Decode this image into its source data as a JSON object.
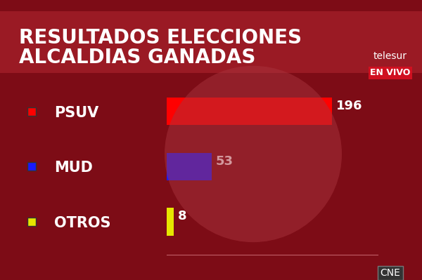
{
  "chart_data": {
    "type": "bar",
    "orientation": "horizontal",
    "title": "RESULTADOS ELECCIONES\nALCALDIAS GANADAS",
    "categories": [
      "PSUV",
      "MUD",
      "OTROS"
    ],
    "values": [
      196,
      53,
      8
    ],
    "colors": [
      "#ff0000",
      "#1a1aff",
      "#e6e600"
    ],
    "xlim": [
      0,
      250
    ],
    "xticks": [],
    "data_labels": true,
    "tick_labels": "y",
    "annotations": [
      "telesur",
      "EN VIVO",
      "CNE"
    ]
  }
}
